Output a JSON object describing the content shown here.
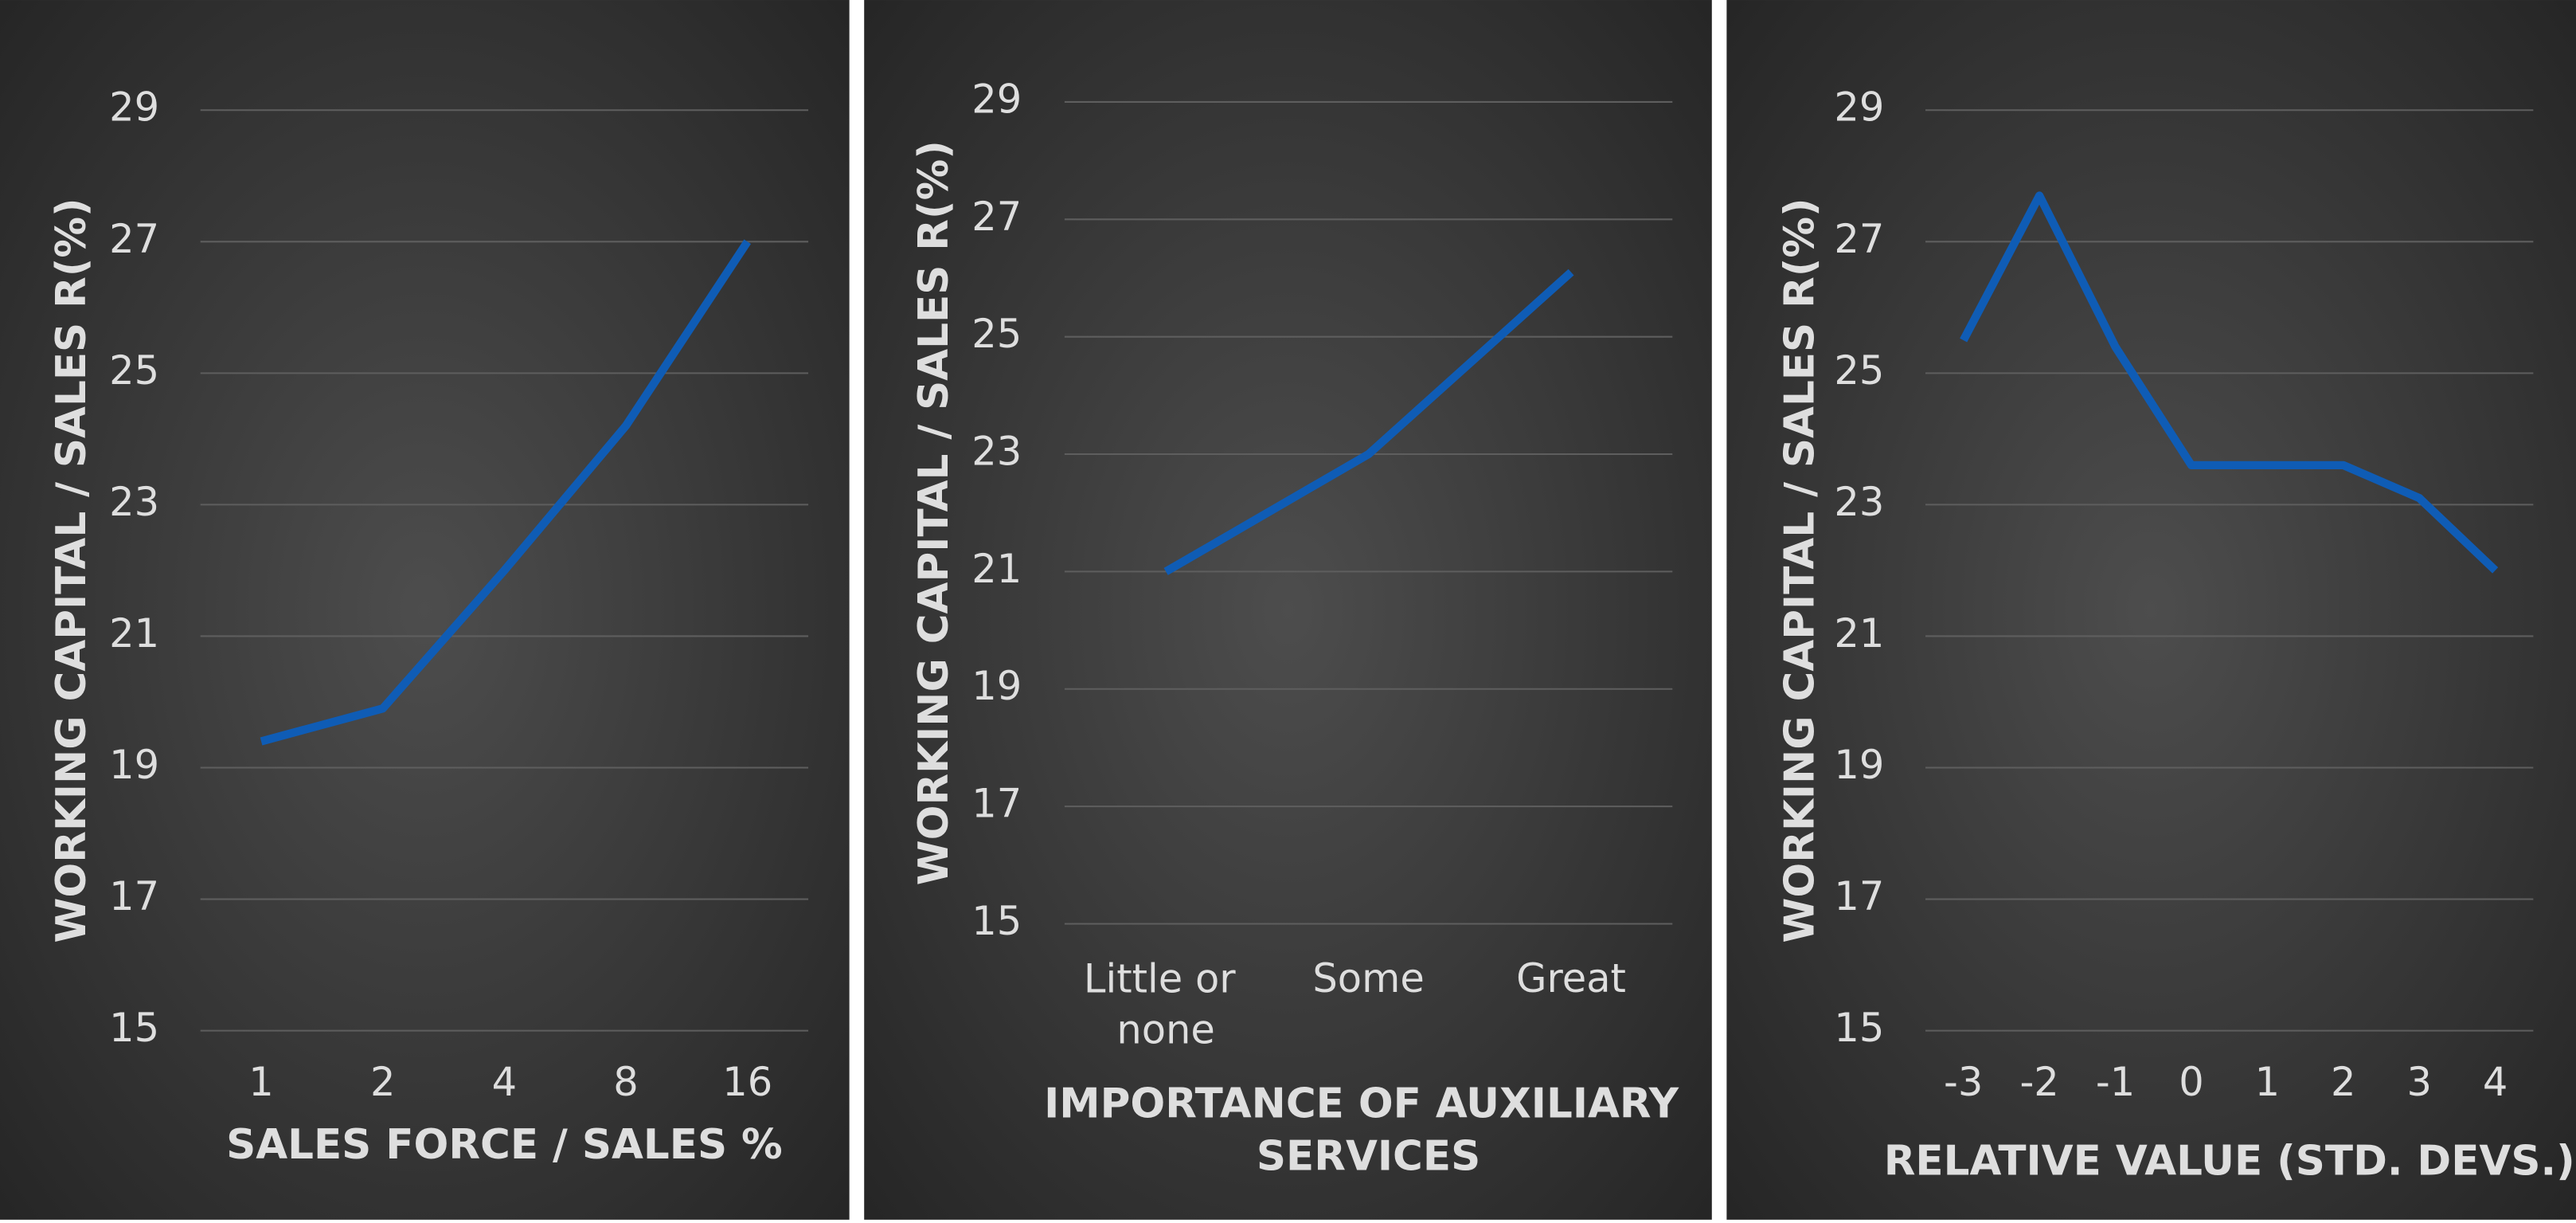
{
  "chart_data": [
    {
      "type": "line",
      "x_label": "SALES FORCE / SALES %",
      "y_label": "WORKING CAPITAL / SALES R(%)",
      "categories": [
        "1",
        "2",
        "4",
        "8",
        "16"
      ],
      "values": [
        19.4,
        19.9,
        22.0,
        24.2,
        27.0
      ],
      "color": "#0f5cb5",
      "ylim": [
        15,
        29
      ],
      "yticks": [
        15,
        17,
        19,
        21,
        23,
        25,
        27,
        29
      ],
      "grid": true
    },
    {
      "type": "line",
      "x_label": "IMPORTANCE OF AUXILIARY SERVICES",
      "y_label": "WORKING CAPITAL / SALES R(%)",
      "categories": [
        "Little or none",
        "Some",
        "Great"
      ],
      "values": [
        21.0,
        23.0,
        26.1
      ],
      "color": "#0f5cb5",
      "ylim": [
        15,
        29
      ],
      "yticks": [
        15,
        17,
        19,
        21,
        23,
        25,
        27,
        29
      ],
      "grid": true
    },
    {
      "type": "line",
      "x_label": "RELATIVE VALUE (STD. DEVS.)",
      "y_label": "WORKING CAPITAL / SALES R(%)",
      "categories": [
        "-3",
        "-2",
        "-1",
        "0",
        "1",
        "2",
        "3",
        "4"
      ],
      "values": [
        25.5,
        27.7,
        25.4,
        23.6,
        23.6,
        23.6,
        23.1,
        22.0
      ],
      "color": "#0f5cb5",
      "ylim": [
        15,
        29
      ],
      "yticks": [
        15,
        17,
        19,
        21,
        23,
        25,
        27,
        29
      ],
      "grid": true
    }
  ]
}
